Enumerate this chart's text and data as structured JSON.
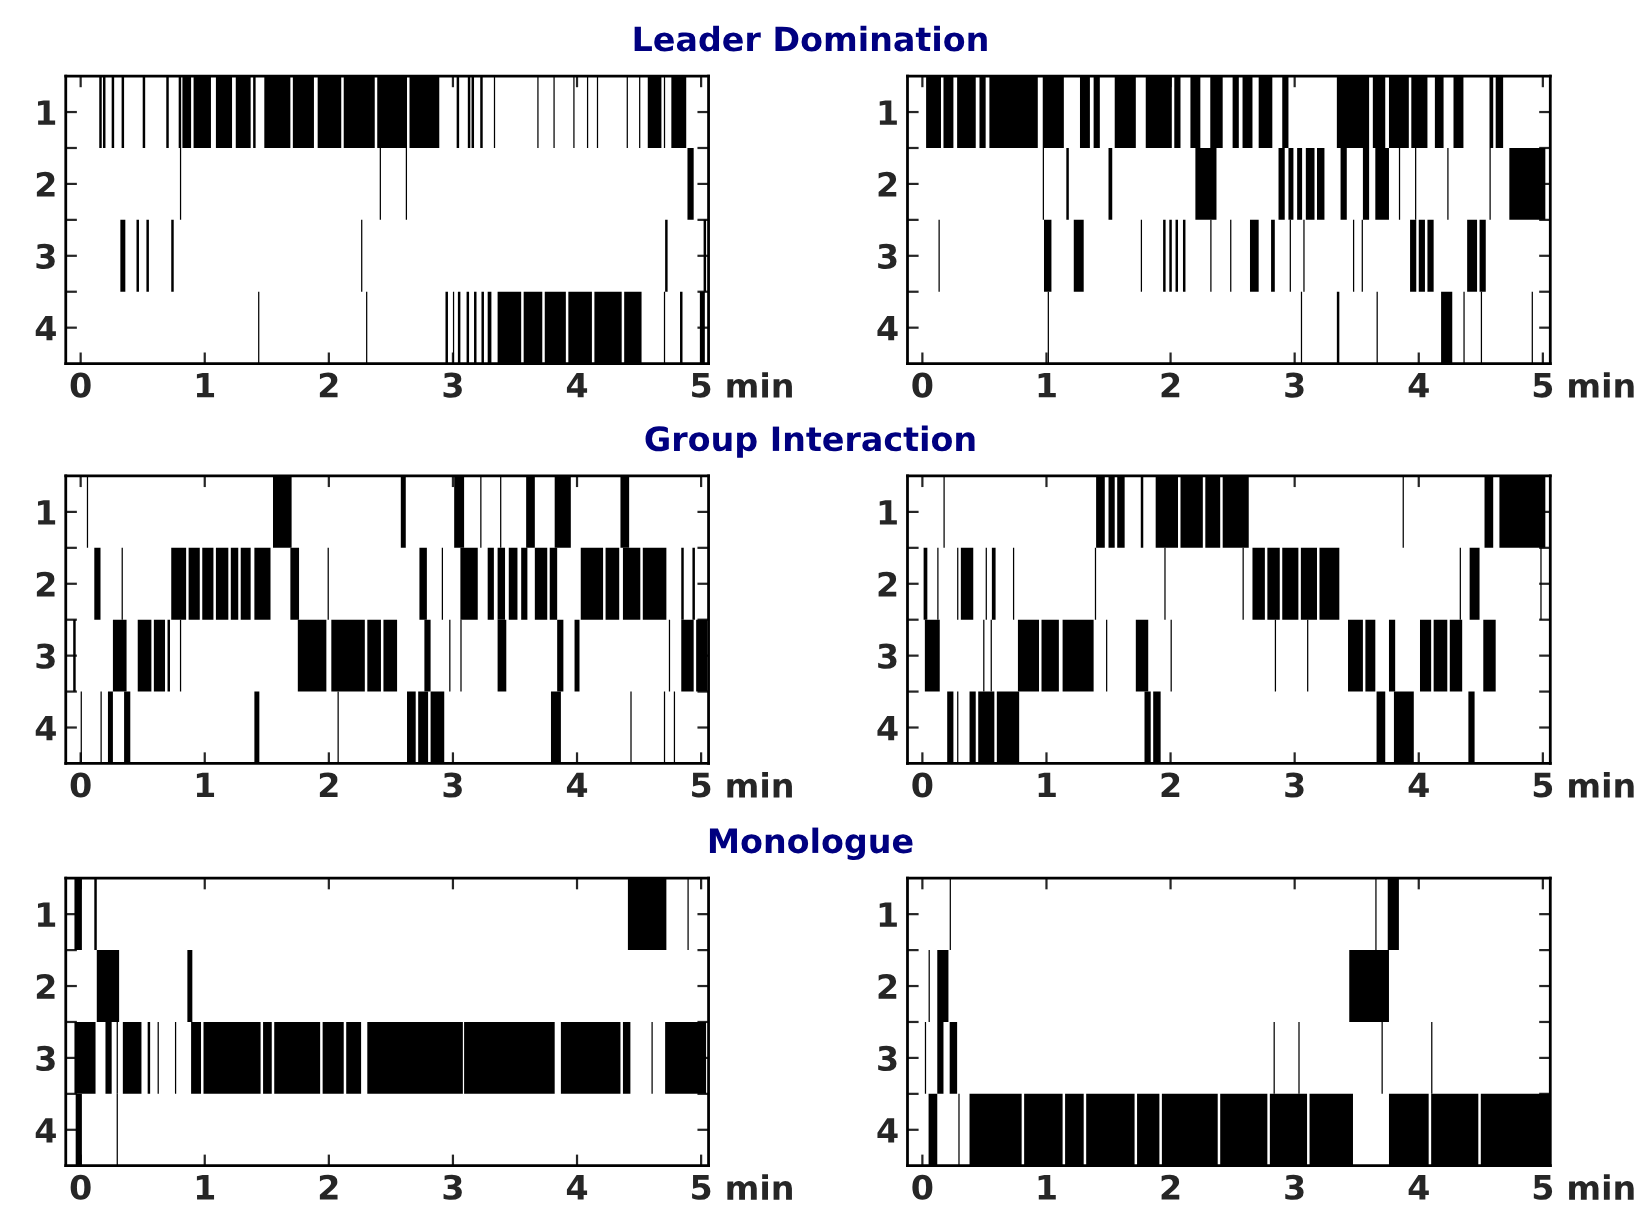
{
  "chart_data": [
    {
      "type": "bar",
      "orientation": "horizontal",
      "title": "Leader Domination",
      "categories": [
        "1",
        "2",
        "3",
        "4"
      ],
      "color": "#000000",
      "xlim": [
        -0.12,
        5.06
      ],
      "xticks": [
        0,
        1,
        2,
        3,
        4,
        5
      ],
      "xlabel": "min",
      "series": [
        {
          "base": [
            0.15,
            0.8,
            0.32,
            1.43
          ],
          "values": [
            0.02,
            0.01,
            0.04,
            0.01
          ]
        },
        {
          "base": [
            0.18,
            2.41,
            0.45,
            2.3
          ],
          "values": [
            0.02,
            0.01,
            0.02,
            0.01
          ]
        },
        {
          "base": [
            0.25,
            2.62,
            0.53,
            2.94
          ],
          "values": [
            0.02,
            0.01,
            0.02,
            0.02
          ]
        },
        {
          "base": [
            0.33,
            4.89,
            0.73,
            3.0
          ],
          "values": [
            0.02,
            0.05,
            0.02,
            0.01
          ]
        },
        {
          "base": [
            0.5,
            null,
            2.26,
            3.04
          ],
          "values": [
            0.02,
            null,
            0.01,
            0.02
          ]
        },
        {
          "base": [
            0.69,
            null,
            4.71,
            3.11
          ],
          "values": [
            0.02,
            null,
            0.02,
            0.02
          ]
        },
        {
          "base": [
            0.79,
            null,
            5.02,
            3.17
          ],
          "values": [
            0.02,
            null,
            0.02,
            0.02
          ]
        },
        {
          "base": [
            0.82,
            null,
            null,
            3.23
          ],
          "values": [
            0.07,
            null,
            null,
            0.02
          ]
        },
        {
          "base": [
            0.91,
            null,
            null,
            3.28
          ],
          "values": [
            0.14,
            null,
            null,
            0.03
          ]
        },
        {
          "base": [
            1.09,
            null,
            null,
            3.36
          ],
          "values": [
            0.13,
            null,
            null,
            0.19
          ]
        },
        {
          "base": [
            1.25,
            null,
            null,
            3.57
          ],
          "values": [
            0.12,
            null,
            null,
            0.15
          ]
        },
        {
          "base": [
            1.39,
            null,
            null,
            3.74
          ],
          "values": [
            0.02,
            null,
            null,
            0.17
          ]
        },
        {
          "base": [
            1.48,
            null,
            null,
            3.93
          ],
          "values": [
            0.21,
            null,
            null,
            0.19
          ]
        },
        {
          "base": [
            1.71,
            null,
            null,
            4.14
          ],
          "values": [
            0.17,
            null,
            null,
            0.22
          ]
        },
        {
          "base": [
            1.91,
            null,
            null,
            4.38
          ],
          "values": [
            0.19,
            null,
            null,
            0.14
          ]
        },
        {
          "base": [
            2.12,
            null,
            null,
            4.7
          ],
          "values": [
            0.25,
            null,
            null,
            0.01
          ]
        },
        {
          "base": [
            2.39,
            null,
            null,
            4.83
          ],
          "values": [
            0.24,
            null,
            null,
            0.02
          ]
        },
        {
          "base": [
            2.65,
            null,
            null,
            4.99
          ],
          "values": [
            0.24,
            null,
            null,
            0.04
          ]
        },
        {
          "base": [
            3.03,
            null,
            null,
            null
          ],
          "values": [
            0.02,
            null,
            null,
            null
          ]
        },
        {
          "base": [
            3.12,
            null,
            null,
            null
          ],
          "values": [
            0.02,
            null,
            null,
            null
          ]
        },
        {
          "base": [
            3.15,
            null,
            null,
            null
          ],
          "values": [
            0.02,
            null,
            null,
            null
          ]
        },
        {
          "base": [
            3.22,
            null,
            null,
            null
          ],
          "values": [
            0.02,
            null,
            null,
            null
          ]
        },
        {
          "base": [
            3.33,
            null,
            null,
            null
          ],
          "values": [
            0.01,
            null,
            null,
            null
          ]
        },
        {
          "base": [
            3.68,
            null,
            null,
            null
          ],
          "values": [
            0.01,
            null,
            null,
            null
          ]
        },
        {
          "base": [
            3.81,
            null,
            null,
            null
          ],
          "values": [
            0.01,
            null,
            null,
            null
          ]
        },
        {
          "base": [
            3.97,
            null,
            null,
            null
          ],
          "values": [
            0.01,
            null,
            null,
            null
          ]
        },
        {
          "base": [
            4.08,
            null,
            null,
            null
          ],
          "values": [
            0.01,
            null,
            null,
            null
          ]
        },
        {
          "base": [
            4.16,
            null,
            null,
            null
          ],
          "values": [
            0.01,
            null,
            null,
            null
          ]
        },
        {
          "base": [
            4.4,
            null,
            null,
            null
          ],
          "values": [
            0.01,
            null,
            null,
            null
          ]
        },
        {
          "base": [
            4.5,
            null,
            null,
            null
          ],
          "values": [
            0.01,
            null,
            null,
            null
          ]
        },
        {
          "base": [
            4.57,
            null,
            null,
            null
          ],
          "values": [
            0.11,
            null,
            null,
            null
          ]
        },
        {
          "base": [
            4.7,
            null,
            null,
            null
          ],
          "values": [
            0.01,
            null,
            null,
            null
          ]
        },
        {
          "base": [
            4.76,
            null,
            null,
            null
          ],
          "values": [
            0.12,
            null,
            null,
            null
          ]
        }
      ]
    },
    {
      "type": "bar",
      "orientation": "horizontal",
      "categories": [
        "1",
        "2",
        "3",
        "4"
      ],
      "color": "#000000",
      "xlim": [
        -0.12,
        5.06
      ],
      "xticks": [
        0,
        1,
        2,
        3,
        4,
        5
      ],
      "xlabel": "min",
      "series": [
        {
          "base": [
            0.03,
            0.97,
            0.13,
            1.01
          ],
          "values": [
            0.12,
            0.01,
            0.01,
            0.01
          ]
        },
        {
          "base": [
            0.17,
            1.16,
            0.98,
            3.05
          ],
          "values": [
            0.08,
            0.02,
            0.06,
            0.01
          ]
        },
        {
          "base": [
            0.28,
            1.5,
            1.22,
            3.34
          ],
          "values": [
            0.15,
            0.03,
            0.08,
            0.02
          ]
        },
        {
          "base": [
            0.46,
            2.2,
            1.76,
            3.66
          ],
          "values": [
            0.05,
            0.17,
            0.01,
            0.01
          ]
        },
        {
          "base": [
            0.54,
            2.87,
            1.94,
            4.18
          ],
          "values": [
            0.39,
            0.05,
            0.02,
            0.09
          ]
        },
        {
          "base": [
            0.97,
            2.95,
            1.99,
            4.36
          ],
          "values": [
            0.17,
            0.04,
            0.02,
            0.01
          ]
        },
        {
          "base": [
            1.27,
            3.02,
            2.04,
            4.5
          ],
          "values": [
            0.08,
            0.04,
            0.02,
            0.01
          ]
        },
        {
          "base": [
            1.38,
            3.09,
            2.1,
            4.91
          ],
          "values": [
            0.05,
            0.07,
            0.02,
            0.01
          ]
        },
        {
          "base": [
            1.55,
            3.18,
            2.32,
            null
          ],
          "values": [
            0.17,
            0.06,
            0.01,
            null
          ]
        },
        {
          "base": [
            1.8,
            3.37,
            2.48,
            null
          ],
          "values": [
            0.21,
            0.05,
            0.01,
            null
          ]
        },
        {
          "base": [
            2.03,
            3.55,
            2.64,
            null
          ],
          "values": [
            0.05,
            0.05,
            0.07,
            null
          ]
        },
        {
          "base": [
            2.16,
            3.65,
            2.81,
            null
          ],
          "values": [
            0.08,
            0.11,
            0.03,
            null
          ]
        },
        {
          "base": [
            2.32,
            3.84,
            2.96,
            null
          ],
          "values": [
            0.1,
            0.01,
            0.01,
            null
          ]
        },
        {
          "base": [
            2.5,
            3.97,
            3.07,
            null
          ],
          "values": [
            0.05,
            0.01,
            0.01,
            null
          ]
        },
        {
          "base": [
            2.58,
            4.23,
            3.47,
            null
          ],
          "values": [
            0.08,
            0.01,
            0.01,
            null
          ]
        },
        {
          "base": [
            2.71,
            4.57,
            3.54,
            null
          ],
          "values": [
            0.11,
            0.01,
            0.01,
            null
          ]
        },
        {
          "base": [
            2.9,
            4.73,
            3.93,
            null
          ],
          "values": [
            0.05,
            0.29,
            0.05,
            null
          ]
        },
        {
          "base": [
            3.34,
            null,
            4.0,
            null
          ],
          "values": [
            0.26,
            null,
            0.05,
            null
          ]
        },
        {
          "base": [
            3.63,
            null,
            4.07,
            null
          ],
          "values": [
            0.1,
            null,
            0.05,
            null
          ]
        },
        {
          "base": [
            3.76,
            null,
            4.39,
            null
          ],
          "values": [
            0.16,
            null,
            0.08,
            null
          ]
        },
        {
          "base": [
            3.94,
            null,
            4.49,
            null
          ],
          "values": [
            0.13,
            null,
            0.05,
            null
          ]
        },
        {
          "base": [
            4.13,
            null,
            null,
            null
          ],
          "values": [
            0.07,
            null,
            null,
            null
          ]
        },
        {
          "base": [
            4.28,
            null,
            null,
            null
          ],
          "values": [
            0.08,
            null,
            null,
            null
          ]
        },
        {
          "base": [
            4.57,
            null,
            null,
            null
          ],
          "values": [
            0.03,
            null,
            null,
            null
          ]
        },
        {
          "base": [
            4.62,
            null,
            null,
            null
          ],
          "values": [
            0.06,
            null,
            null,
            null
          ]
        }
      ]
    },
    {
      "type": "bar",
      "orientation": "horizontal",
      "title": "Group Interaction",
      "categories": [
        "1",
        "2",
        "3",
        "4"
      ],
      "color": "#000000",
      "xlim": [
        -0.12,
        5.06
      ],
      "xticks": [
        0,
        1,
        2,
        3,
        4,
        5
      ],
      "xlabel": "min",
      "series": [
        {
          "base": [
            0.05,
            0.11,
            -0.06,
            0.0
          ],
          "values": [
            0.01,
            0.05,
            0.02,
            0.01
          ]
        },
        {
          "base": [
            1.55,
            0.33,
            0.26,
            0.16
          ],
          "values": [
            0.15,
            0.01,
            0.11,
            0.01
          ]
        },
        {
          "base": [
            2.58,
            0.73,
            0.46,
            0.22
          ],
          "values": [
            0.04,
            0.12,
            0.11,
            0.04
          ]
        },
        {
          "base": [
            3.01,
            0.87,
            0.59,
            0.35
          ],
          "values": [
            0.08,
            0.09,
            0.09,
            0.05
          ]
        },
        {
          "base": [
            3.22,
            0.98,
            0.7,
            1.4
          ],
          "values": [
            0.01,
            0.09,
            0.02,
            0.04
          ]
        },
        {
          "base": [
            3.38,
            1.09,
            0.8,
            2.07
          ],
          "values": [
            0.01,
            0.1,
            0.01,
            0.01
          ]
        },
        {
          "base": [
            3.59,
            1.21,
            1.75,
            2.63
          ],
          "values": [
            0.07,
            0.06,
            0.23,
            0.07
          ]
        },
        {
          "base": [
            3.82,
            1.29,
            2.02,
            2.72
          ],
          "values": [
            0.13,
            0.08,
            0.27,
            0.08
          ]
        },
        {
          "base": [
            4.35,
            1.4,
            2.31,
            2.82
          ],
          "values": [
            0.07,
            0.13,
            0.11,
            0.11
          ]
        },
        {
          "base": [
            null,
            1.69,
            2.44,
            3.79
          ],
          "values": [
            null,
            0.07,
            0.11,
            0.08
          ]
        },
        {
          "base": [
            null,
            1.99,
            2.77,
            4.43
          ],
          "values": [
            null,
            0.01,
            0.05,
            0.01
          ]
        },
        {
          "base": [
            null,
            2.73,
            2.97,
            4.7
          ],
          "values": [
            null,
            0.06,
            0.01,
            0.01
          ]
        },
        {
          "base": [
            null,
            2.91,
            3.06,
            4.78
          ],
          "values": [
            null,
            0.01,
            0.01,
            0.01
          ]
        },
        {
          "base": [
            null,
            3.06,
            3.36,
            null
          ],
          "values": [
            null,
            0.14,
            0.07,
            null
          ]
        },
        {
          "base": [
            null,
            3.28,
            3.84,
            null
          ],
          "values": [
            null,
            0.05,
            0.05,
            null
          ]
        },
        {
          "base": [
            null,
            3.36,
            3.98,
            null
          ],
          "values": [
            null,
            0.06,
            0.04,
            null
          ]
        },
        {
          "base": [
            null,
            3.45,
            4.74,
            null
          ],
          "values": [
            null,
            0.07,
            0.01,
            null
          ]
        },
        {
          "base": [
            null,
            3.55,
            4.84,
            null
          ],
          "values": [
            null,
            0.05,
            0.1,
            null
          ]
        },
        {
          "base": [
            null,
            3.66,
            4.96,
            null
          ],
          "values": [
            null,
            0.1,
            0.09,
            null
          ]
        },
        {
          "base": [
            null,
            3.78,
            null,
            null
          ],
          "values": [
            null,
            0.06,
            null,
            null
          ]
        },
        {
          "base": [
            null,
            4.03,
            null,
            null
          ],
          "values": [
            null,
            0.18,
            null,
            null
          ]
        },
        {
          "base": [
            null,
            4.23,
            null,
            null
          ],
          "values": [
            null,
            0.11,
            null,
            null
          ]
        },
        {
          "base": [
            null,
            4.37,
            null,
            null
          ],
          "values": [
            null,
            0.14,
            null,
            null
          ]
        },
        {
          "base": [
            null,
            4.53,
            null,
            null
          ],
          "values": [
            null,
            0.19,
            null,
            null
          ]
        },
        {
          "base": [
            null,
            4.84,
            null,
            null
          ],
          "values": [
            null,
            0.02,
            null,
            null
          ]
        },
        {
          "base": [
            null,
            4.93,
            null,
            null
          ],
          "values": [
            null,
            0.02,
            null,
            null
          ]
        }
      ]
    },
    {
      "type": "bar",
      "orientation": "horizontal",
      "categories": [
        "1",
        "2",
        "3",
        "4"
      ],
      "color": "#000000",
      "xlim": [
        -0.12,
        5.06
      ],
      "xticks": [
        0,
        1,
        2,
        3,
        4,
        5
      ],
      "xlabel": "min",
      "series": [
        {
          "base": [
            0.17,
            0.01,
            0.02,
            0.2
          ],
          "values": [
            0.01,
            0.03,
            0.12,
            0.05
          ]
        },
        {
          "base": [
            1.4,
            0.12,
            0.49,
            0.28
          ],
          "values": [
            0.07,
            0.01,
            0.01,
            0.01
          ]
        },
        {
          "base": [
            1.5,
            0.28,
            0.55,
            0.38
          ],
          "values": [
            0.05,
            0.01,
            0.01,
            0.05
          ]
        },
        {
          "base": [
            1.57,
            0.31,
            0.77,
            0.45
          ],
          "values": [
            0.06,
            0.1,
            0.17,
            0.13
          ]
        },
        {
          "base": [
            1.76,
            0.51,
            0.96,
            0.6
          ],
          "values": [
            0.02,
            0.01,
            0.14,
            0.18
          ]
        },
        {
          "base": [
            1.88,
            0.56,
            1.13,
            1.79
          ],
          "values": [
            0.18,
            0.03,
            0.25,
            0.05
          ]
        },
        {
          "base": [
            2.08,
            0.73,
            1.48,
            1.86
          ],
          "values": [
            0.18,
            0.01,
            0.01,
            0.06
          ]
        },
        {
          "base": [
            2.28,
            1.39,
            1.72,
            3.66
          ],
          "values": [
            0.12,
            0.01,
            0.1,
            0.07
          ]
        },
        {
          "base": [
            2.42,
            1.95,
            2.0,
            3.8
          ],
          "values": [
            0.21,
            0.01,
            0.01,
            0.16
          ]
        },
        {
          "base": [
            3.87,
            2.58,
            2.84,
            4.4
          ],
          "values": [
            0.01,
            0.01,
            0.01,
            0.05
          ]
        },
        {
          "base": [
            4.53,
            2.66,
            3.1,
            null
          ],
          "values": [
            0.07,
            0.1,
            0.01,
            null
          ]
        },
        {
          "base": [
            4.65,
            2.78,
            3.43,
            null
          ],
          "values": [
            0.37,
            0.1,
            0.12,
            null
          ]
        },
        {
          "base": [
            null,
            2.9,
            3.57,
            null
          ],
          "values": [
            null,
            0.13,
            0.08,
            null
          ]
        },
        {
          "base": [
            null,
            3.05,
            3.76,
            null
          ],
          "values": [
            null,
            0.13,
            0.05,
            null
          ]
        },
        {
          "base": [
            null,
            3.2,
            4.01,
            null
          ],
          "values": [
            null,
            0.16,
            0.09,
            null
          ]
        },
        {
          "base": [
            null,
            4.33,
            4.12,
            null
          ],
          "values": [
            null,
            0.01,
            0.11,
            null
          ]
        },
        {
          "base": [
            null,
            4.41,
            4.25,
            null
          ],
          "values": [
            null,
            0.08,
            0.1,
            null
          ]
        },
        {
          "base": [
            null,
            4.98,
            4.52,
            null
          ],
          "values": [
            null,
            0.01,
            0.1,
            null
          ]
        }
      ]
    },
    {
      "type": "bar",
      "orientation": "horizontal",
      "title": "Monologue",
      "categories": [
        "1",
        "2",
        "3",
        "4"
      ],
      "color": "#000000",
      "xlim": [
        -0.12,
        5.06
      ],
      "xticks": [
        0,
        1,
        2,
        3,
        4,
        5
      ],
      "xlabel": "min",
      "series": [
        {
          "base": [
            -0.05,
            0.13,
            -0.05,
            -0.04
          ],
          "values": [
            0.06,
            0.18,
            0.17,
            0.05
          ]
        },
        {
          "base": [
            0.11,
            0.86,
            0.2,
            0.29
          ],
          "values": [
            0.02,
            0.04,
            0.05,
            0.01
          ]
        },
        {
          "base": [
            4.41,
            null,
            0.29,
            null
          ],
          "values": [
            0.31,
            null,
            0.01,
            null
          ]
        },
        {
          "base": [
            4.89,
            null,
            0.34,
            null
          ],
          "values": [
            0.01,
            null,
            0.15,
            null
          ]
        },
        {
          "base": [
            null,
            null,
            0.54,
            null
          ],
          "values": [
            null,
            null,
            0.02,
            null
          ]
        },
        {
          "base": [
            null,
            null,
            0.62,
            null
          ],
          "values": [
            null,
            null,
            0.01,
            null
          ]
        },
        {
          "base": [
            null,
            null,
            0.76,
            null
          ],
          "values": [
            null,
            null,
            0.01,
            null
          ]
        },
        {
          "base": [
            null,
            null,
            0.89,
            null
          ],
          "values": [
            null,
            null,
            0.08,
            null
          ]
        },
        {
          "base": [
            null,
            null,
            0.99,
            null
          ],
          "values": [
            null,
            null,
            0.46,
            null
          ]
        },
        {
          "base": [
            null,
            null,
            1.47,
            null
          ],
          "values": [
            null,
            null,
            0.07,
            null
          ]
        },
        {
          "base": [
            null,
            null,
            1.56,
            null
          ],
          "values": [
            null,
            null,
            0.37,
            null
          ]
        },
        {
          "base": [
            null,
            null,
            1.95,
            null
          ],
          "values": [
            null,
            null,
            0.17,
            null
          ]
        },
        {
          "base": [
            null,
            null,
            2.14,
            null
          ],
          "values": [
            null,
            null,
            0.12,
            null
          ]
        },
        {
          "base": [
            null,
            null,
            2.31,
            null
          ],
          "values": [
            null,
            null,
            0.77,
            null
          ]
        },
        {
          "base": [
            null,
            null,
            3.09,
            null
          ],
          "values": [
            null,
            null,
            0.73,
            null
          ]
        },
        {
          "base": [
            null,
            null,
            3.87,
            null
          ],
          "values": [
            null,
            null,
            0.48,
            null
          ]
        },
        {
          "base": [
            null,
            null,
            4.37,
            null
          ],
          "values": [
            null,
            null,
            0.06,
            null
          ]
        },
        {
          "base": [
            null,
            null,
            4.6,
            null
          ],
          "values": [
            null,
            null,
            0.01,
            null
          ]
        },
        {
          "base": [
            null,
            null,
            4.71,
            null
          ],
          "values": [
            null,
            null,
            0.33,
            null
          ]
        }
      ]
    },
    {
      "type": "bar",
      "orientation": "horizontal",
      "categories": [
        "1",
        "2",
        "3",
        "4"
      ],
      "color": "#000000",
      "xlim": [
        -0.12,
        5.06
      ],
      "xticks": [
        0,
        1,
        2,
        3,
        4,
        5
      ],
      "xlabel": "min",
      "series": [
        {
          "base": [
            0.22,
            0.05,
            0.02,
            0.05
          ],
          "values": [
            0.01,
            0.01,
            0.01,
            0.07
          ]
        },
        {
          "base": [
            3.65,
            0.12,
            0.12,
            0.29
          ],
          "values": [
            0.01,
            0.09,
            0.05,
            0.01
          ]
        },
        {
          "base": [
            3.75,
            3.44,
            0.22,
            0.38
          ],
          "values": [
            0.09,
            0.32,
            0.06,
            0.42
          ]
        },
        {
          "base": [
            null,
            null,
            2.83,
            0.82
          ],
          "values": [
            null,
            null,
            0.01,
            0.31
          ]
        },
        {
          "base": [
            null,
            null,
            3.03,
            1.15
          ],
          "values": [
            null,
            null,
            0.01,
            0.15
          ]
        },
        {
          "base": [
            null,
            null,
            3.7,
            1.32
          ],
          "values": [
            null,
            null,
            0.01,
            0.39
          ]
        },
        {
          "base": [
            null,
            null,
            4.1,
            1.73
          ],
          "values": [
            null,
            null,
            0.01,
            0.18
          ]
        },
        {
          "base": [
            null,
            null,
            null,
            1.93
          ],
          "values": [
            null,
            null,
            null,
            0.45
          ]
        },
        {
          "base": [
            null,
            null,
            null,
            2.4
          ],
          "values": [
            null,
            null,
            null,
            0.38
          ]
        },
        {
          "base": [
            null,
            null,
            null,
            2.8
          ],
          "values": [
            null,
            null,
            null,
            0.3
          ]
        },
        {
          "base": [
            null,
            null,
            null,
            3.12
          ],
          "values": [
            null,
            null,
            null,
            0.35
          ]
        },
        {
          "base": [
            null,
            null,
            null,
            3.76
          ],
          "values": [
            null,
            null,
            null,
            0.32
          ]
        },
        {
          "base": [
            null,
            null,
            null,
            4.1
          ],
          "values": [
            null,
            null,
            null,
            0.38
          ]
        },
        {
          "base": [
            null,
            null,
            null,
            4.5
          ],
          "values": [
            null,
            null,
            null,
            0.55
          ]
        }
      ]
    }
  ]
}
